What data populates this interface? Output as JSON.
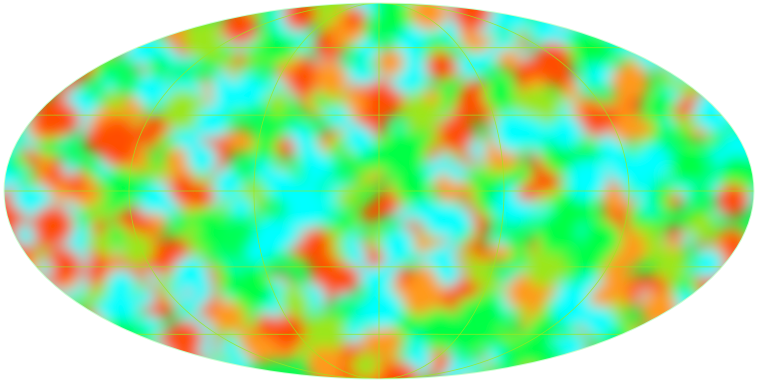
{
  "map": {
    "projection": "mollweide",
    "colormap": [
      "#00ffff",
      "#00ff44",
      "#9be61e",
      "#ff9a1a",
      "#ff4d00"
    ],
    "graticule": {
      "visible": true,
      "color": "#9be61e",
      "longitude_step_deg": 60,
      "latitude_step_deg": 30
    }
  }
}
